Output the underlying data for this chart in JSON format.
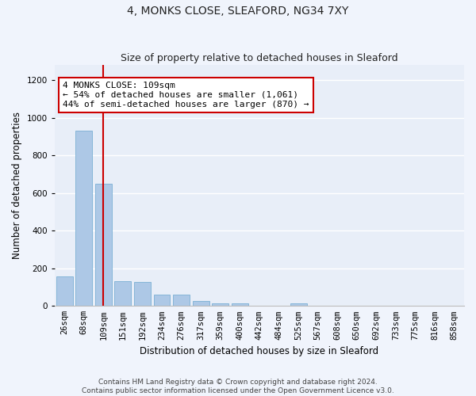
{
  "title1": "4, MONKS CLOSE, SLEAFORD, NG34 7XY",
  "title2": "Size of property relative to detached houses in Sleaford",
  "xlabel": "Distribution of detached houses by size in Sleaford",
  "ylabel": "Number of detached properties",
  "categories": [
    "26sqm",
    "68sqm",
    "109sqm",
    "151sqm",
    "192sqm",
    "234sqm",
    "276sqm",
    "317sqm",
    "359sqm",
    "400sqm",
    "442sqm",
    "484sqm",
    "525sqm",
    "567sqm",
    "608sqm",
    "650sqm",
    "692sqm",
    "733sqm",
    "775sqm",
    "816sqm",
    "858sqm"
  ],
  "values": [
    155,
    930,
    650,
    130,
    128,
    62,
    60,
    28,
    15,
    12,
    0,
    0,
    15,
    0,
    0,
    0,
    0,
    0,
    0,
    0,
    0
  ],
  "bar_color": "#adc8e6",
  "bar_edge_color": "#7aafd4",
  "highlight_bar_index": 2,
  "highlight_color": "#cc0000",
  "annotation_text": "4 MONKS CLOSE: 109sqm\n← 54% of detached houses are smaller (1,061)\n44% of semi-detached houses are larger (870) →",
  "annotation_box_color": "#ffffff",
  "annotation_box_edge": "#cc0000",
  "ylim": [
    0,
    1280
  ],
  "yticks": [
    0,
    200,
    400,
    600,
    800,
    1000,
    1200
  ],
  "plot_bg_color": "#e8eef8",
  "fig_bg_color": "#f0f4fc",
  "footer_text": "Contains HM Land Registry data © Crown copyright and database right 2024.\nContains public sector information licensed under the Open Government Licence v3.0.",
  "title1_fontsize": 10,
  "title2_fontsize": 9,
  "xlabel_fontsize": 8.5,
  "ylabel_fontsize": 8.5,
  "annotation_fontsize": 8,
  "tick_fontsize": 7.5,
  "footer_fontsize": 6.5
}
